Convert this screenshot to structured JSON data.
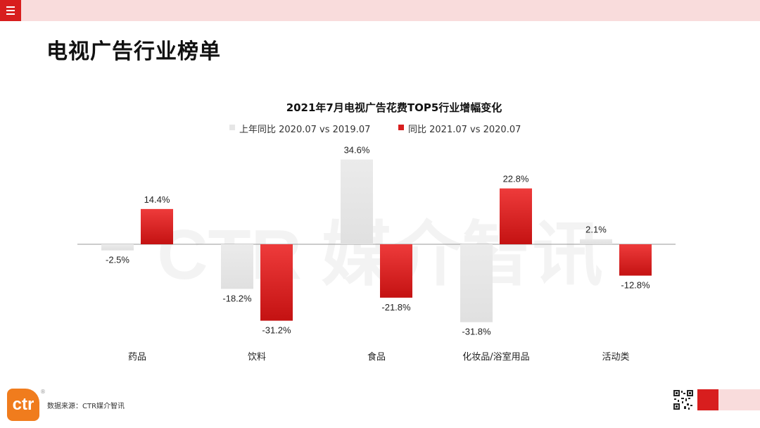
{
  "header": {
    "menu_icon": "hamburger-menu-icon"
  },
  "page": {
    "title": "电视广告行业榜单",
    "watermark": "CTR 媒介智讯"
  },
  "colors": {
    "brand_red": "#d81e1e",
    "brand_pink": "#f9dcdc",
    "prev_year_gray": "#e6e6e6",
    "logo_orange": "#f07c1d"
  },
  "chart_data": {
    "type": "bar",
    "title": "2021年7月电视广告花费TOP5行业增幅变化",
    "categories": [
      "药品",
      "饮料",
      "食品",
      "化妆品/浴室用品",
      "活动类"
    ],
    "series": [
      {
        "name": "上年同比 2020.07 vs 2019.07",
        "values": [
          -2.5,
          -18.2,
          34.6,
          -31.8,
          2.1
        ],
        "labels": [
          "-2.5%",
          "-18.2%",
          "34.6%",
          "-31.8%",
          "2.1%"
        ]
      },
      {
        "name": "同比 2021.07 vs 2020.07",
        "values": [
          14.4,
          -31.2,
          -21.8,
          22.8,
          -12.8
        ],
        "labels": [
          "14.4%",
          "-31.2%",
          "-21.8%",
          "22.8%",
          "-12.8%"
        ]
      }
    ],
    "unit": "%",
    "xlabel": "",
    "ylabel": "",
    "ylim": [
      -35,
      40
    ],
    "grid": false,
    "legend_position": "top-center",
    "y_axis_visible": false
  },
  "footer": {
    "logo_text": "ctr",
    "registered_mark": "®",
    "source": "数据来源：CTR媒介智讯",
    "qr_icon": "qr-code-icon"
  }
}
